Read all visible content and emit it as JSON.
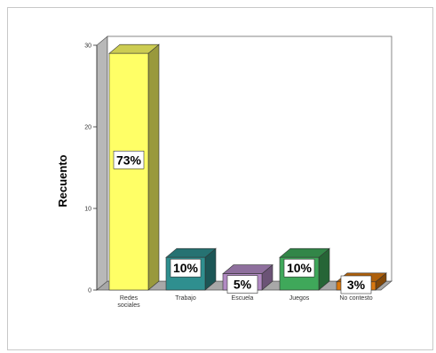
{
  "chart_data": {
    "type": "bar",
    "title": "",
    "xlabel": "",
    "ylabel": "Recuento",
    "ylim": [
      0,
      30
    ],
    "yticks": [
      0,
      10,
      20,
      30
    ],
    "yticks_labels": [
      "0",
      "10",
      "20",
      "30"
    ],
    "categories": [
      "Redes sociales",
      "Trabajo",
      "Escuela",
      "Juegos",
      "No contesto"
    ],
    "category_lines": [
      [
        "Redes",
        "sociales"
      ],
      [
        "Trabajo"
      ],
      [
        "Escuela"
      ],
      [
        "Juegos"
      ],
      [
        "No contesto"
      ]
    ],
    "values": [
      29,
      4,
      2,
      4,
      1
    ],
    "data_labels": [
      "73%",
      "10%",
      "5%",
      "10%",
      "3%"
    ],
    "colors": [
      "#ffff66",
      "#2f8f8f",
      "#b28bc4",
      "#3fa85a",
      "#d9780f"
    ],
    "grid": false,
    "legend": "none",
    "style": "3d"
  }
}
